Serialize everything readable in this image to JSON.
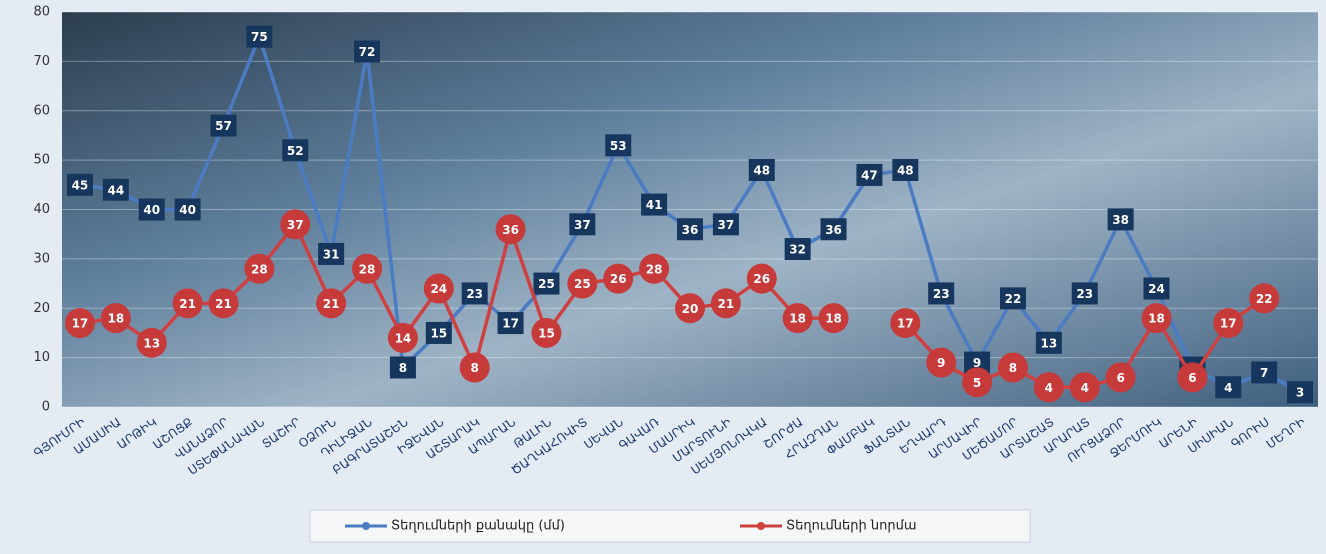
{
  "chart_data": {
    "type": "line",
    "categories": [
      "ԳՅՈՒՄՐԻ",
      "ԱՄԱՍԻԱ",
      "ԱՐԹԻԿ",
      "ԱՇՈՑՔ",
      "ՎԱՆԱՁՈՐ",
      "ՍՏԵՓԱՆԱՎԱՆ",
      "ՏԱՇԻՐ",
      "ՕՁՈՒՆ",
      "ԴԻԼԻՋԱՆ",
      "ԲԱԳՐԱՏԱՇԵՆ",
      "ԻՋԵՎԱՆ",
      "ԱՇՏԱՐԱԿ",
      "ԱՊԱՐԱՆ",
      "ԹԱԼԻՆ",
      "ԾԱՂԿԱՀՈՎԻՏ",
      "ՍԵՎԱՆ",
      "ԳԱՎԱՌ",
      "ՄԱՍՐԻԿ",
      "ՄԱՐՏՈՒՆԻ",
      "ՍԵՄՅՈՆՈՎԿԱ",
      "ՇՈՐԺԱ",
      "ՀՐԱԶԴԱՆ",
      "ՓԱՄԲԱԿ",
      "ՖԱՆՏԱՆ",
      "ԵՂՎԱՐԴ",
      "ԱՐՄԱՎԻՐ",
      "ՄԵԾԱՄՈՐ",
      "ԱՐՏԱՇԱՏ",
      "ԱՐԱՐԱՏ",
      "ՈՒՐՑԱՁՈՐ",
      "ՋԵՐՄՈՒԿ",
      "ԱՐԵՆԻ",
      "ՍԻՍԻԱՆ",
      "ԳՈՐԻՍ",
      "ՄԵՂՐԻ"
    ],
    "series": [
      {
        "name": "Տեղումների քանակը (մմ)",
        "color": "#4a7cc4",
        "label_color": "#17365d",
        "values": [
          45,
          44,
          40,
          40,
          57,
          75,
          52,
          31,
          72,
          8,
          15,
          23,
          17,
          25,
          37,
          53,
          41,
          36,
          37,
          48,
          32,
          36,
          47,
          48,
          23,
          9,
          22,
          13,
          23,
          38,
          24,
          8,
          4,
          7,
          3
        ]
      },
      {
        "name": "Տեղումների նորմա",
        "color": "#cf4040",
        "label_color": "#c63a3a",
        "values": [
          17,
          18,
          13,
          21,
          21,
          28,
          37,
          21,
          28,
          14,
          24,
          8,
          36,
          15,
          25,
          26,
          28,
          20,
          21,
          26,
          18,
          18,
          null,
          17,
          9,
          5,
          8,
          4,
          4,
          6,
          18,
          6,
          17,
          22,
          null
        ]
      }
    ],
    "ylim": [
      0,
      80
    ],
    "yticks": [
      0,
      10,
      20,
      30,
      40,
      50,
      60,
      70,
      80
    ],
    "grid": true
  }
}
